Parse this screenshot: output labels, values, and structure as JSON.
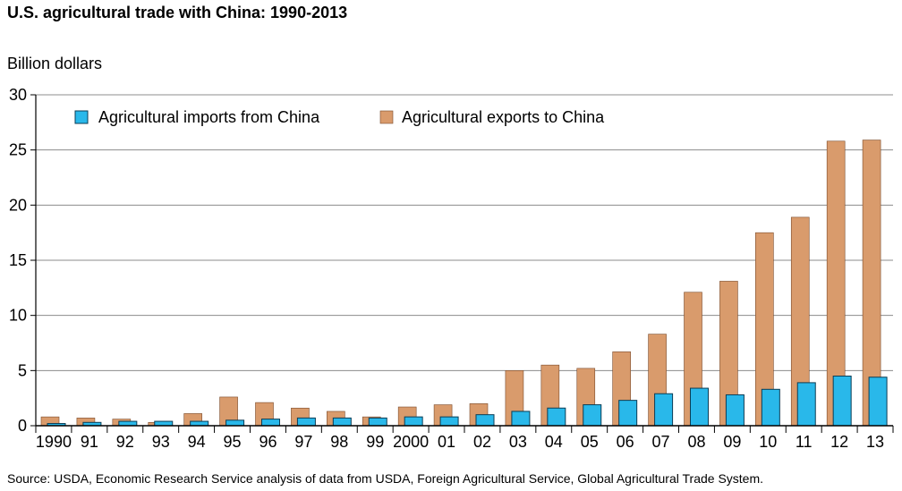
{
  "chart_data": {
    "type": "bar",
    "title": "U.S. agricultural trade with China: 1990-2013",
    "ylabel": "Billion dollars",
    "xlabel": "",
    "source": "Source: USDA, Economic Research Service analysis of data from USDA, Foreign Agricultural Service, Global Agricultural Trade System.",
    "categories": [
      "1990",
      "91",
      "92",
      "93",
      "94",
      "95",
      "96",
      "97",
      "98",
      "99",
      "2000",
      "01",
      "02",
      "03",
      "04",
      "05",
      "06",
      "07",
      "08",
      "09",
      "10",
      "11",
      "12",
      "13"
    ],
    "series": [
      {
        "name": "Agricultural imports from China",
        "color": "#29b8ea",
        "values": [
          0.2,
          0.3,
          0.4,
          0.4,
          0.4,
          0.5,
          0.6,
          0.7,
          0.7,
          0.7,
          0.8,
          0.8,
          1.0,
          1.3,
          1.6,
          1.9,
          2.3,
          2.9,
          3.4,
          2.8,
          3.3,
          3.9,
          4.5,
          4.4
        ]
      },
      {
        "name": "Agricultural exports to China",
        "color": "#d99b6c",
        "values": [
          0.8,
          0.7,
          0.6,
          0.3,
          1.1,
          2.6,
          2.1,
          1.6,
          1.3,
          0.8,
          1.7,
          1.9,
          2.0,
          5.0,
          5.5,
          5.2,
          6.7,
          8.3,
          12.1,
          13.1,
          17.5,
          18.9,
          25.8,
          25.9
        ]
      }
    ],
    "yticks": [
      0,
      5,
      10,
      15,
      20,
      25,
      30
    ],
    "ylim": [
      0,
      30
    ],
    "grid": true,
    "legend_position": "top"
  }
}
